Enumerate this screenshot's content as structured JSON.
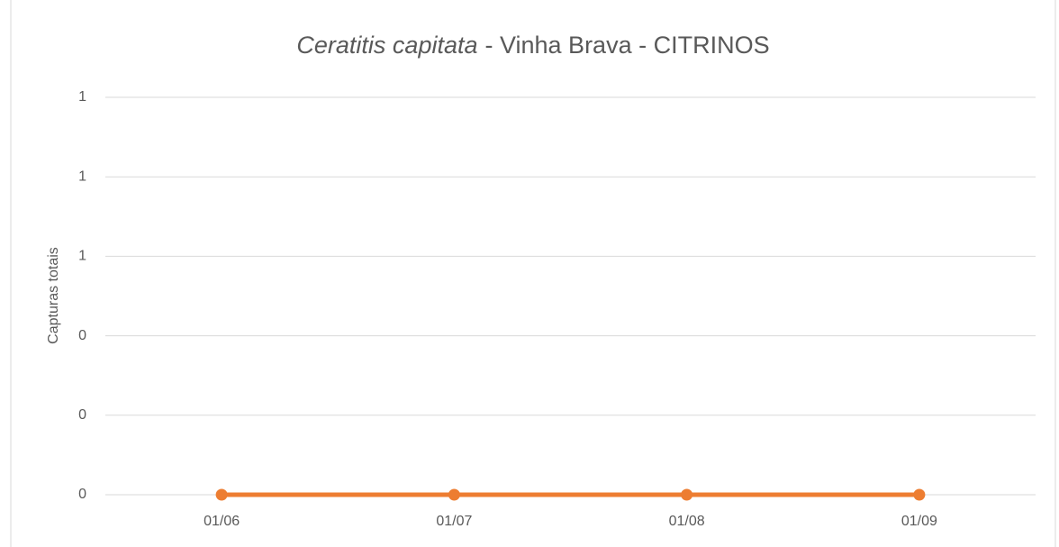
{
  "chart_data": {
    "type": "line",
    "title": {
      "species": "Ceratitis capitata",
      "rest": "- Vinha Brava - CITRINOS"
    },
    "y_label": "Capturas totais",
    "categories": [
      "01/06",
      "01/07",
      "01/08",
      "01/09"
    ],
    "series": [
      {
        "name": "Capturas totais",
        "color": "#ed7d31",
        "values": [
          0,
          0,
          0,
          0
        ]
      }
    ],
    "ylim": [
      0,
      1
    ],
    "yticks": [
      0,
      {
        "value": 0.2,
        "label": "0"
      },
      {
        "value": 0.4,
        "label": "0"
      },
      {
        "value": 0.6,
        "label": "1"
      },
      {
        "value": 0.8,
        "label": "1"
      },
      1
    ],
    "grid": true,
    "legend": false
  }
}
